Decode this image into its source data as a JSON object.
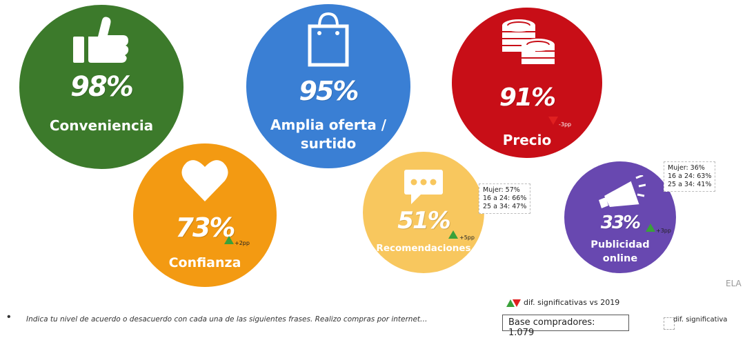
{
  "colors": {
    "green": "#3c7a2b",
    "blue": "#3a7fd4",
    "red": "#c80e17",
    "orange": "#f39a12",
    "yellow": "#f8c75e",
    "purple": "#6848b0",
    "up": "#3aa13a",
    "down": "#e02020"
  },
  "bubbles": [
    {
      "icon": "thumbs-up-icon",
      "percent": "98%",
      "label": "Conveniencia"
    },
    {
      "icon": "shopping-bag-icon",
      "percent": "95%",
      "label_line1": "Amplia oferta /",
      "label_line2": "surtido"
    },
    {
      "icon": "coins-icon",
      "percent": "91%",
      "label": "Precio",
      "diff": "-3pp",
      "trend": "down"
    },
    {
      "icon": "heart-icon",
      "percent": "73%",
      "label": "Confianza",
      "diff": "+2pp",
      "trend": "up"
    },
    {
      "icon": "speech-bubble-icon",
      "percent": "51%",
      "label": "Recomendaciones",
      "diff": "+5pp",
      "trend": "up",
      "notes": [
        "Mujer: 57%",
        "16 a 24: 66%",
        "25 a 34: 47%"
      ]
    },
    {
      "icon": "megaphone-icon",
      "percent": "33%",
      "label_line1": "Publicidad",
      "label_line2": "online",
      "diff": "+3pp",
      "trend": "up",
      "notes": [
        "Mujer: 36%",
        "16 a 24: 63%",
        "25 a 34: 41%"
      ]
    }
  ],
  "footer": {
    "question": "Indica tu nivel de acuerdo o desacuerdo con cada una de las siguientes frases. Realizo compras por internet…",
    "base": "Base compradores: 1.079",
    "legend_significance": "dif. significativas vs 2019",
    "legend_dif": "dif. significativa",
    "brand": "ELA"
  }
}
